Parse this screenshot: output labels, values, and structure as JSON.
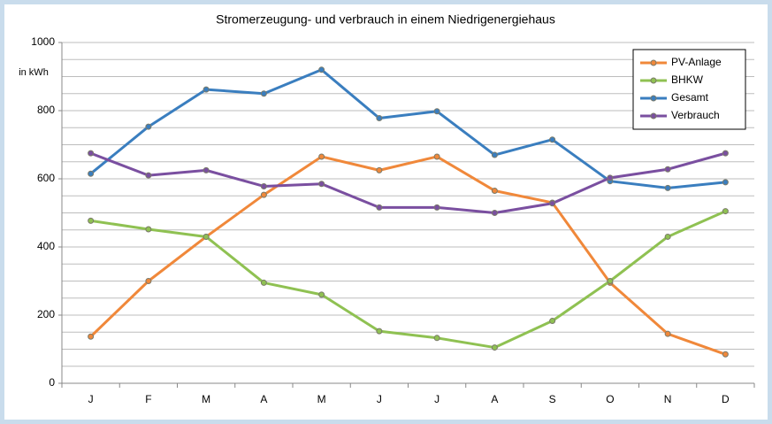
{
  "chart_data": {
    "type": "line",
    "title": "Stromerzeugung- und verbrauch in einem Niedrigenergiehaus",
    "y_label": "in kWh",
    "categories": [
      "J",
      "F",
      "M",
      "A",
      "M",
      "J",
      "J",
      "A",
      "S",
      "O",
      "N",
      "D"
    ],
    "series": [
      {
        "name": "PV-Anlage",
        "color": "#f0883a",
        "values": [
          137,
          300,
          430,
          553,
          665,
          625,
          665,
          565,
          530,
          295,
          145,
          85
        ]
      },
      {
        "name": "BHKW",
        "color": "#8fc152",
        "values": [
          477,
          452,
          430,
          295,
          260,
          153,
          133,
          105,
          183,
          300,
          430,
          505
        ]
      },
      {
        "name": "Gesamt",
        "color": "#3a7ebf",
        "values": [
          615,
          753,
          862,
          850,
          920,
          778,
          798,
          670,
          715,
          593,
          573,
          590
        ]
      },
      {
        "name": "Verbrauch",
        "color": "#7a4fa0",
        "values": [
          675,
          610,
          625,
          578,
          585,
          516,
          516,
          500,
          528,
          603,
          628,
          675
        ]
      }
    ],
    "ylim": [
      0,
      1000
    ],
    "yticks": [
      0,
      200,
      400,
      600,
      800,
      1000
    ],
    "minor_yticks": [
      50,
      100,
      150,
      250,
      300,
      350,
      450,
      500,
      550,
      650,
      700,
      750,
      850,
      900,
      950
    ],
    "grid": true,
    "legend": "top-right"
  }
}
